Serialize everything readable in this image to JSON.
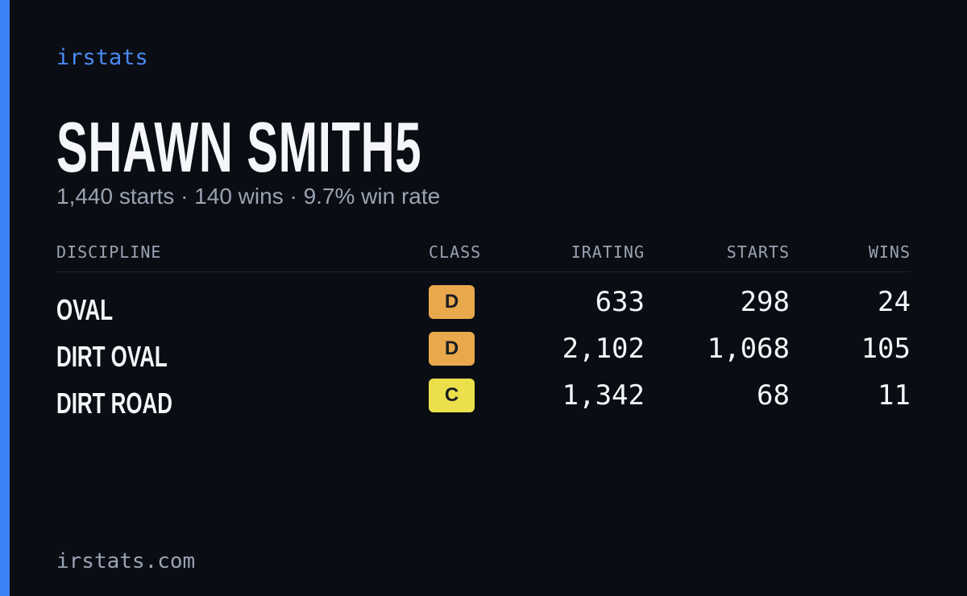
{
  "brand": "irstats",
  "driver": {
    "name": "SHAWN SMITH5",
    "summary": "1,440 starts · 140 wins · 9.7% win rate"
  },
  "table": {
    "headers": [
      "DISCIPLINE",
      "CLASS",
      "IRATING",
      "STARTS",
      "WINS"
    ],
    "rows": [
      {
        "discipline": "OVAL",
        "class": "D",
        "class_color": "#e9a84c",
        "irating": "633",
        "starts": "298",
        "wins": "24"
      },
      {
        "discipline": "DIRT OVAL",
        "class": "D",
        "class_color": "#e9a84c",
        "irating": "2,102",
        "starts": "1,068",
        "wins": "105"
      },
      {
        "discipline": "DIRT ROAD",
        "class": "C",
        "class_color": "#ebdf4b",
        "irating": "1,342",
        "starts": "68",
        "wins": "11"
      }
    ]
  },
  "footer": "irstats.com"
}
